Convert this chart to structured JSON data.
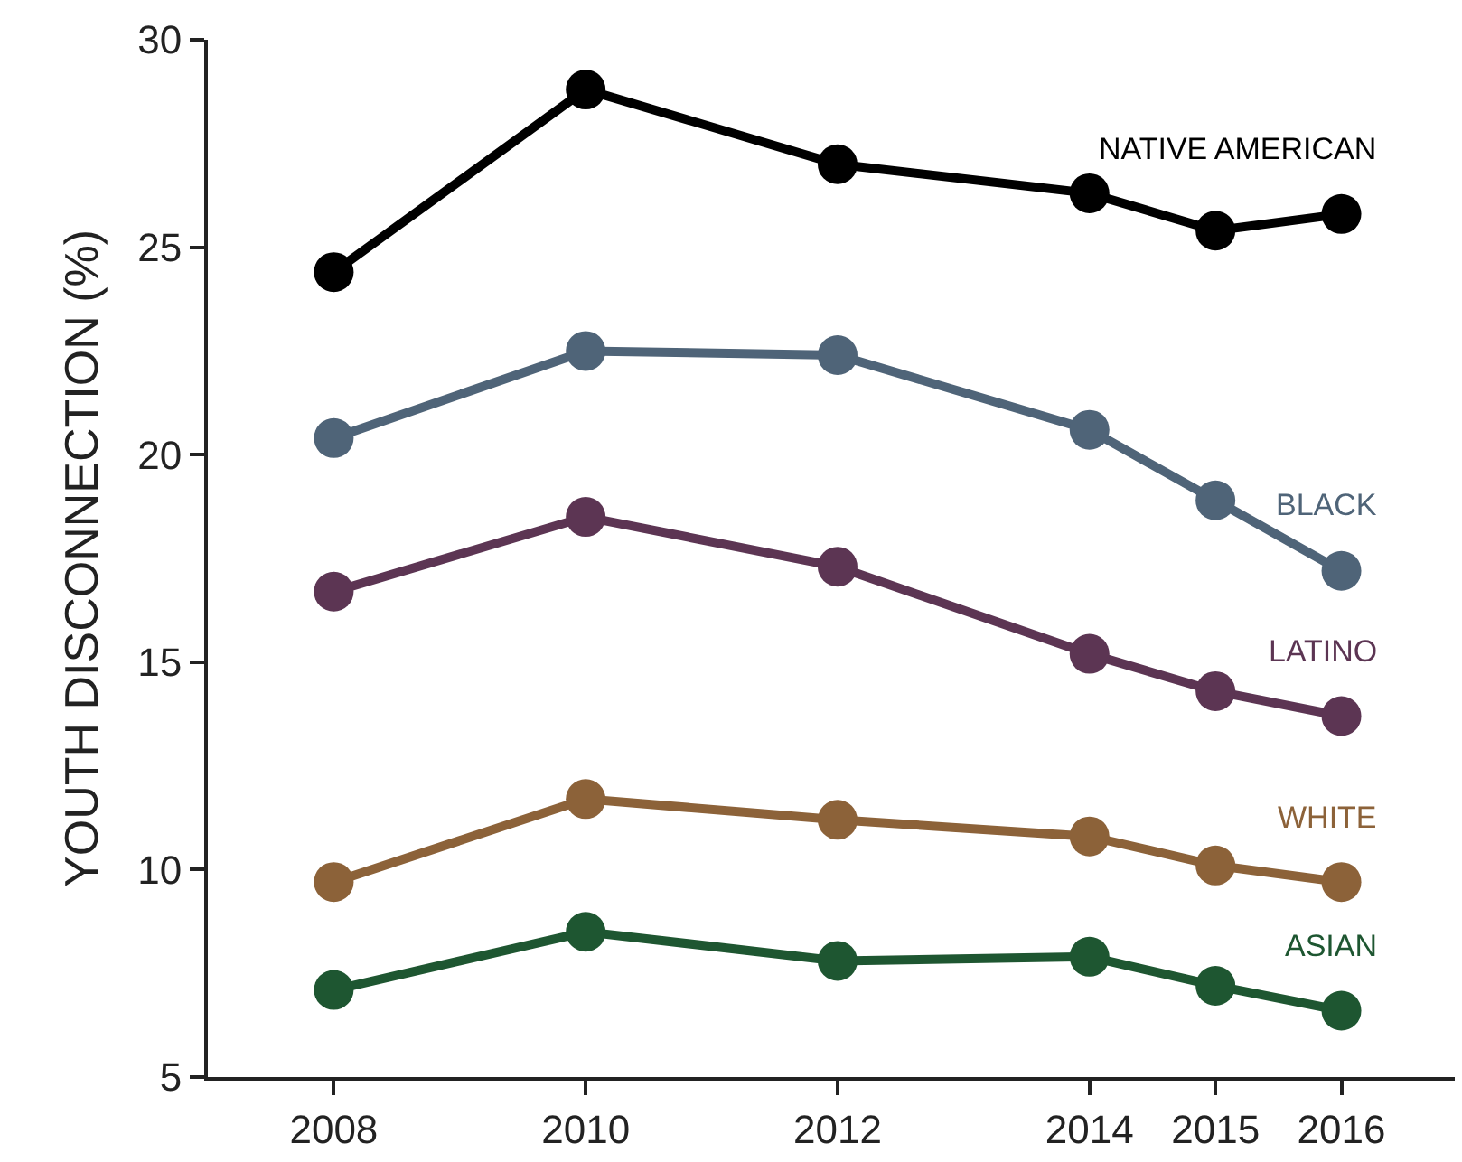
{
  "chart_data": {
    "type": "line",
    "ylabel": "YOUTH DISCONNECTION (%)",
    "x": [
      2008,
      2010,
      2012,
      2014,
      2015,
      2016
    ],
    "series": [
      {
        "name": "NATIVE AMERICAN",
        "color": "#000000",
        "values": [
          24.4,
          28.8,
          27.0,
          26.3,
          25.4,
          25.8
        ]
      },
      {
        "name": "BLACK",
        "color": "#4f6478",
        "values": [
          20.4,
          22.5,
          22.4,
          20.6,
          18.9,
          17.2
        ]
      },
      {
        "name": "LATINO",
        "color": "#5c3553",
        "values": [
          16.7,
          18.5,
          17.3,
          15.2,
          14.3,
          13.7
        ]
      },
      {
        "name": "WHITE",
        "color": "#8c6239",
        "values": [
          9.7,
          11.7,
          11.2,
          10.8,
          10.1,
          9.7
        ]
      },
      {
        "name": "ASIAN",
        "color": "#1e5631",
        "values": [
          7.1,
          8.5,
          7.8,
          7.9,
          7.2,
          6.6
        ]
      }
    ],
    "xlim": [
      2007,
      2016.9
    ],
    "xticks": [
      2008,
      2010,
      2012,
      2014,
      2015,
      2016
    ],
    "ylim": [
      5,
      30
    ],
    "yticks": [
      5,
      10,
      15,
      20,
      25,
      30
    ],
    "grid": false,
    "legend": false,
    "marker": "circle",
    "line_style": "solid"
  }
}
